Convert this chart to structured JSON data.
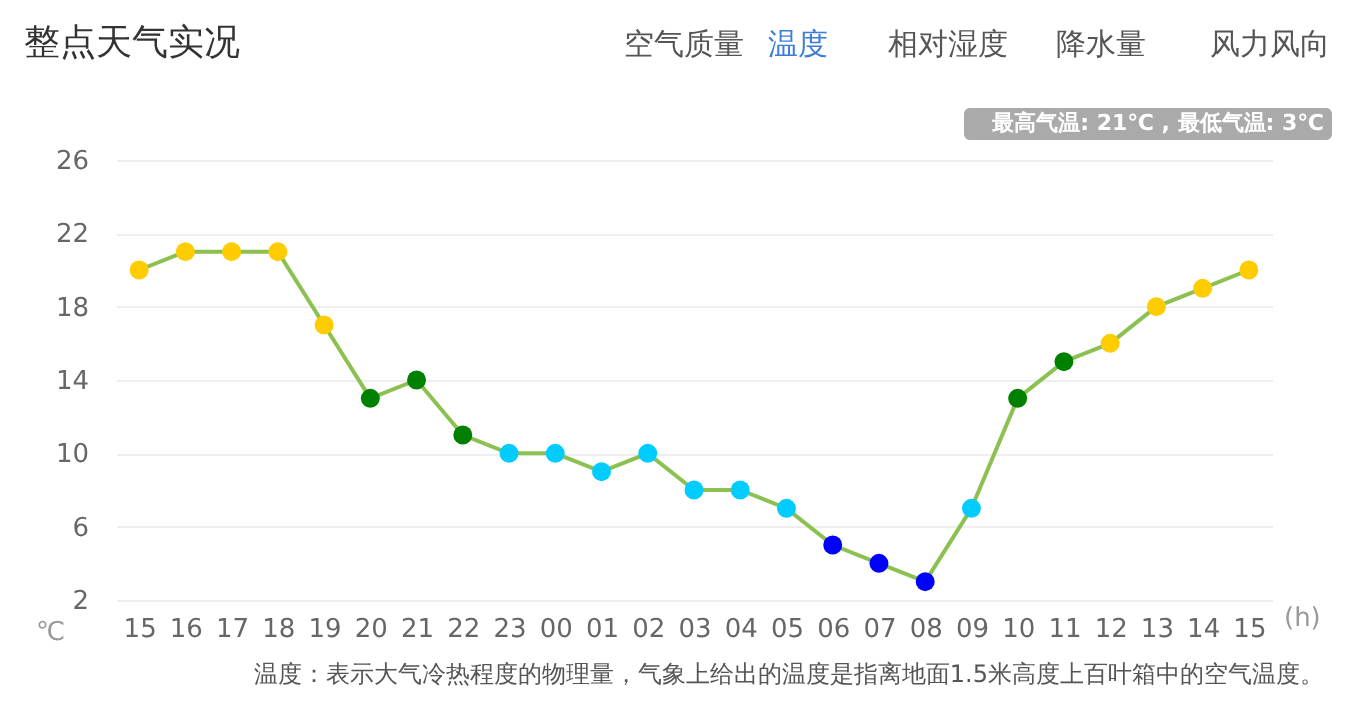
{
  "chart_data": {
    "type": "line",
    "title": "整点天气实况",
    "xlabel": "(h)",
    "ylabel": "℃",
    "categories": [
      "15",
      "16",
      "17",
      "18",
      "19",
      "20",
      "21",
      "22",
      "23",
      "00",
      "01",
      "02",
      "03",
      "04",
      "05",
      "06",
      "07",
      "08",
      "09",
      "10",
      "11",
      "12",
      "13",
      "14",
      "15"
    ],
    "series": [
      {
        "color": "#8cc152",
        "values": [
          20,
          21,
          21,
          21,
          17,
          13,
          14,
          11,
          10,
          10,
          9,
          10,
          8,
          8,
          7,
          5,
          4,
          3,
          7,
          13,
          15,
          16,
          18,
          19,
          20
        ],
        "colors": [
          "#ffcc00",
          "#ffcc00",
          "#ffcc00",
          "#ffcc00",
          "#ffcc00",
          "#008000",
          "#008000",
          "#008000",
          "#00ccff",
          "#00ccff",
          "#00ccff",
          "#00ccff",
          "#00ccff",
          "#00ccff",
          "#00ccff",
          "#0000ff",
          "#0000ff",
          "#0000ff",
          "#00ccff",
          "#008000",
          "#008000",
          "#ffcc00",
          "#ffcc00",
          "#ffcc00",
          "#ffcc00"
        ]
      }
    ],
    "ylim": [
      2,
      26
    ],
    "yticks": [
      2,
      6,
      10,
      14,
      18,
      22,
      26
    ],
    "grid": "y",
    "marker": "circle",
    "line_style": "solid",
    "annotations": [
      "空气质量",
      "温度",
      "相对湿度",
      "降水量",
      "风力风向",
      "最高气温: 21℃ , 最低气温: 3℃",
      "温度：表示大气冷热程度的物理量，气象上给出的温度是指离地面1.5米高度上百叶箱中的空气温度。"
    ]
  }
}
